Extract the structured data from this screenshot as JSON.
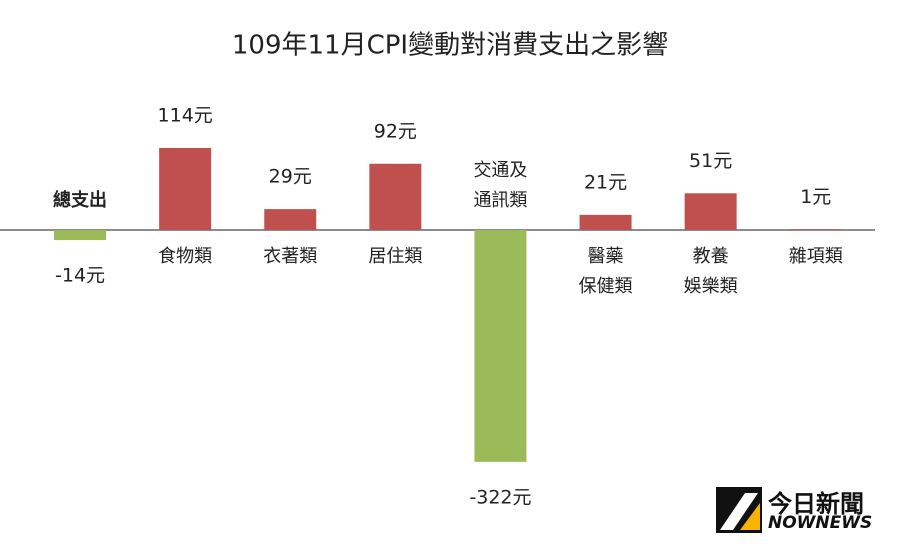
{
  "chart_data": {
    "type": "bar",
    "title": "109年11月CPI變動對消費支出之影響",
    "categories": [
      "總支出",
      "食物類",
      "衣著類",
      "居住類",
      "交通及\n通訊類",
      "醫藥\n保健類",
      "教養\n娛樂類",
      "雜項類"
    ],
    "values": [
      -14,
      114,
      29,
      92,
      -322,
      21,
      51,
      1
    ],
    "value_labels": [
      "-14元",
      "114元",
      "29元",
      "92元",
      "-322元",
      "21元",
      "51元",
      "1元"
    ],
    "colors": [
      "#9bbb59",
      "#c0504d",
      "#c0504d",
      "#c0504d",
      "#9bbb59",
      "#c0504d",
      "#c0504d",
      "#c0504d"
    ],
    "ylim": [
      -330,
      130
    ]
  },
  "watermark": {
    "name": "今日新聞",
    "brand": "NOWNEWS"
  }
}
